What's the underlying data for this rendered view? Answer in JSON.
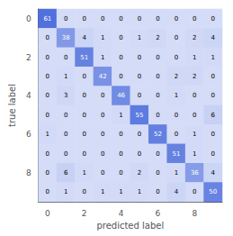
{
  "chart_data": {
    "type": "heatmap",
    "xlabel": "predicted label",
    "ylabel": "true label",
    "x_categories": [
      "0",
      null,
      "2",
      null,
      "4",
      null,
      "6",
      null,
      "8",
      null
    ],
    "y_categories": [
      "0",
      null,
      "2",
      null,
      "4",
      null,
      "6",
      null,
      "8",
      null
    ],
    "matrix": [
      [
        61,
        0,
        0,
        0,
        0,
        0,
        0,
        0,
        0,
        0
      ],
      [
        0,
        38,
        4,
        1,
        0,
        1,
        2,
        0,
        2,
        4
      ],
      [
        0,
        0,
        51,
        1,
        0,
        0,
        0,
        0,
        1,
        1
      ],
      [
        0,
        1,
        0,
        42,
        0,
        0,
        0,
        2,
        2,
        0
      ],
      [
        0,
        3,
        0,
        0,
        46,
        0,
        0,
        1,
        0,
        0
      ],
      [
        0,
        0,
        0,
        0,
        1,
        55,
        0,
        0,
        0,
        6
      ],
      [
        1,
        0,
        0,
        0,
        0,
        0,
        52,
        0,
        1,
        0
      ],
      [
        0,
        0,
        0,
        0,
        0,
        0,
        0,
        51,
        1,
        0
      ],
      [
        0,
        6,
        1,
        0,
        0,
        2,
        0,
        1,
        36,
        4
      ],
      [
        0,
        1,
        0,
        1,
        1,
        1,
        0,
        4,
        0,
        50
      ]
    ],
    "data_labels": true
  }
}
